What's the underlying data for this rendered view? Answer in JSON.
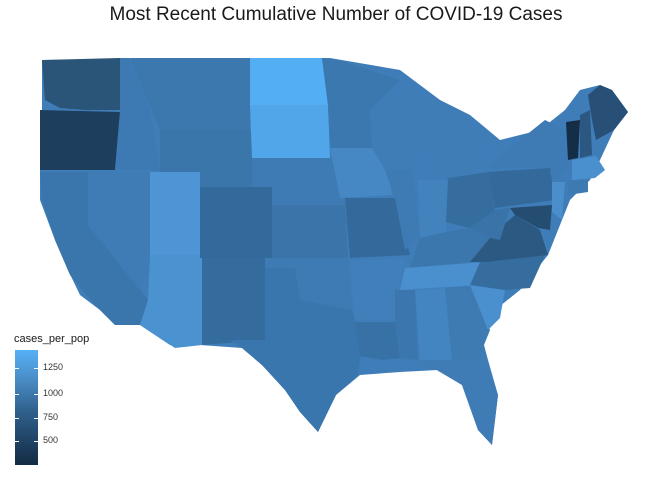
{
  "title": "Most Recent Cumulative Number of COVID-19 Cases",
  "legend": {
    "title": "cases_per_pop",
    "ticks": [
      "1250",
      "1000",
      "750",
      "500"
    ]
  },
  "colors": {
    "low": "#132b43",
    "high": "#56b1f7"
  }
}
